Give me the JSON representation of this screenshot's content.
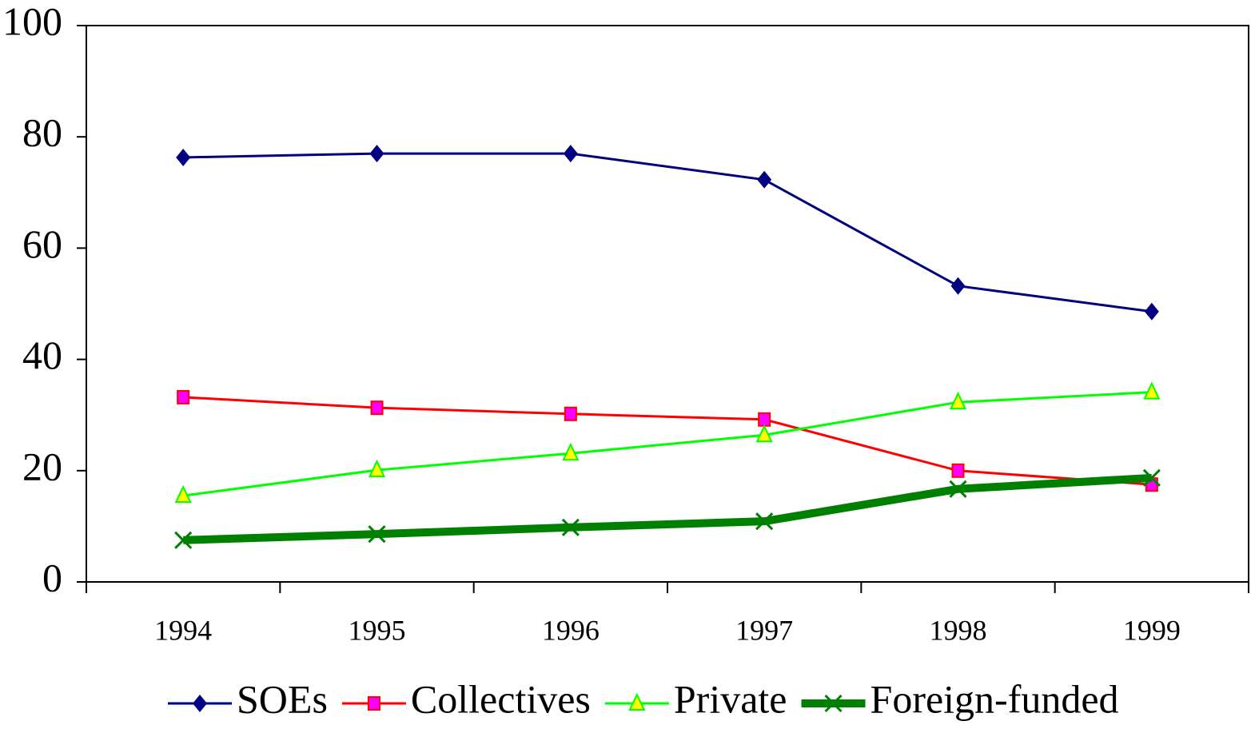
{
  "chart_data": {
    "type": "line",
    "categories": [
      "1994",
      "1995",
      "1996",
      "1997",
      "1998",
      "1999"
    ],
    "series": [
      {
        "name": "SOEs",
        "color": "#000080",
        "marker": "diamond",
        "values": [
          76.3,
          77.0,
          77.0,
          72.3,
          53.2,
          48.6
        ]
      },
      {
        "name": "Collectives",
        "color": "#ff0000",
        "marker": "square",
        "values": [
          33.2,
          31.3,
          30.2,
          29.2,
          20.0,
          17.5
        ]
      },
      {
        "name": "Private",
        "color": "#00ff00",
        "marker": "triangle",
        "values": [
          15.5,
          20.1,
          23.1,
          26.4,
          32.3,
          34.1
        ]
      },
      {
        "name": "Foreign-funded",
        "color": "#008000",
        "marker": "x",
        "linewidth": 10,
        "values": [
          7.5,
          8.6,
          9.8,
          10.9,
          16.7,
          18.7
        ]
      }
    ],
    "ylim": [
      0,
      100
    ],
    "yticks": [
      0,
      20,
      40,
      60,
      80,
      100
    ],
    "legend": "bottom"
  }
}
